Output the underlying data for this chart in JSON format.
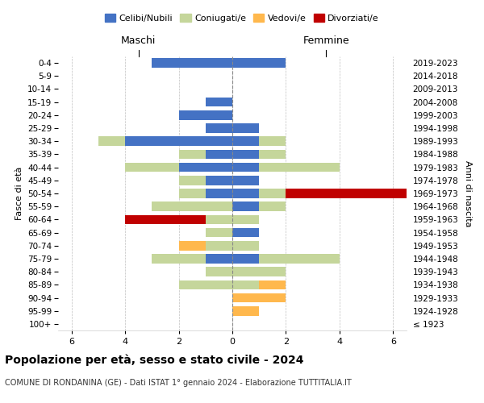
{
  "age_groups": [
    "100+",
    "95-99",
    "90-94",
    "85-89",
    "80-84",
    "75-79",
    "70-74",
    "65-69",
    "60-64",
    "55-59",
    "50-54",
    "45-49",
    "40-44",
    "35-39",
    "30-34",
    "25-29",
    "20-24",
    "15-19",
    "10-14",
    "5-9",
    "0-4"
  ],
  "birth_years": [
    "≤ 1923",
    "1924-1928",
    "1929-1933",
    "1934-1938",
    "1939-1943",
    "1944-1948",
    "1949-1953",
    "1954-1958",
    "1959-1963",
    "1964-1968",
    "1969-1973",
    "1974-1978",
    "1979-1983",
    "1984-1988",
    "1989-1993",
    "1994-1998",
    "1999-2003",
    "2004-2008",
    "2009-2013",
    "2014-2018",
    "2019-2023"
  ],
  "colors": {
    "celibi": "#4472C4",
    "coniugati": "#C5D69B",
    "vedovi": "#FFB84D",
    "divorziati": "#C00000"
  },
  "males": {
    "celibi": [
      0,
      0,
      0,
      0,
      0,
      1,
      0,
      0,
      0,
      0,
      1,
      1,
      2,
      1,
      4,
      1,
      2,
      1,
      0,
      0,
      3
    ],
    "coniugati": [
      0,
      0,
      0,
      2,
      1,
      2,
      1,
      1,
      1,
      3,
      1,
      1,
      2,
      1,
      1,
      0,
      0,
      0,
      0,
      0,
      0
    ],
    "vedovi": [
      0,
      0,
      0,
      0,
      0,
      0,
      1,
      0,
      0,
      0,
      0,
      0,
      0,
      0,
      0,
      0,
      0,
      0,
      0,
      0,
      0
    ],
    "divorziati": [
      0,
      0,
      0,
      0,
      0,
      0,
      0,
      0,
      3,
      0,
      0,
      0,
      0,
      0,
      0,
      0,
      0,
      0,
      0,
      0,
      0
    ]
  },
  "females": {
    "celibi": [
      0,
      0,
      0,
      0,
      0,
      1,
      0,
      1,
      0,
      1,
      1,
      1,
      1,
      1,
      1,
      1,
      0,
      0,
      0,
      0,
      2
    ],
    "coniugati": [
      0,
      0,
      0,
      1,
      2,
      3,
      1,
      0,
      1,
      1,
      1,
      0,
      3,
      1,
      1,
      0,
      0,
      0,
      0,
      0,
      0
    ],
    "vedovi": [
      0,
      1,
      2,
      1,
      0,
      0,
      0,
      0,
      0,
      0,
      0,
      0,
      0,
      0,
      0,
      0,
      0,
      0,
      0,
      0,
      0
    ],
    "divorziati": [
      0,
      0,
      0,
      0,
      0,
      0,
      0,
      0,
      0,
      0,
      5,
      0,
      0,
      0,
      0,
      0,
      0,
      0,
      0,
      0,
      0
    ]
  },
  "xlim": 6.5,
  "xticks": [
    -6,
    -4,
    -2,
    0,
    2,
    4,
    6
  ],
  "xtick_labels": [
    "6",
    "4",
    "2",
    "0",
    "2",
    "4",
    "6"
  ],
  "title": "Popolazione per età, sesso e stato civile - 2024",
  "subtitle": "COMUNE DI RONDANINA (GE) - Dati ISTAT 1° gennaio 2024 - Elaborazione TUTTITALIA.IT",
  "ylabel_left": "Fasce di età",
  "ylabel_right": "Anni di nascita",
  "xlabel_left": "Maschi",
  "xlabel_right": "Femmine",
  "legend_labels": [
    "Celibi/Nubili",
    "Coniugati/e",
    "Vedovi/e",
    "Divorziati/e"
  ],
  "background_color": "#ffffff"
}
